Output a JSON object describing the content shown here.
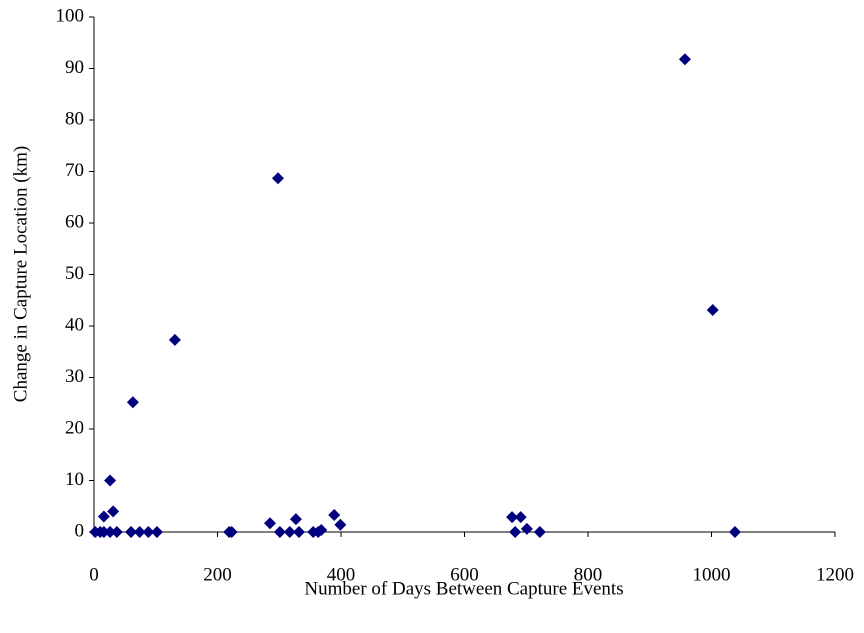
{
  "chart_data": {
    "type": "scatter",
    "x_label": "Number of Days Between Capture Events",
    "y_label": "Change in Capture Location (km)",
    "color": "#00007f",
    "x": [
      2,
      10,
      16,
      16,
      26,
      26,
      31,
      37,
      60,
      63,
      74,
      88,
      102,
      131,
      219,
      223,
      285,
      298,
      301,
      317,
      327,
      332,
      355,
      363,
      368,
      389,
      399,
      677,
      682,
      691,
      701,
      722,
      957,
      1002,
      1038
    ],
    "values": [
      0,
      0,
      0,
      3,
      0,
      10,
      4,
      0,
      0,
      25.2,
      0,
      0,
      0,
      37.3,
      0,
      0,
      1.7,
      68.7,
      0,
      0,
      2.5,
      0,
      0,
      0,
      0.4,
      3.3,
      1.4,
      2.9,
      0,
      2.9,
      0.6,
      0,
      91.8,
      43.1,
      0
    ],
    "xlim": [
      0,
      1200
    ],
    "xticks": [
      0,
      200,
      400,
      600,
      800,
      1000,
      1200
    ],
    "ylim": [
      0,
      100
    ],
    "yticks": [
      0,
      10,
      20,
      30,
      40,
      50,
      60,
      70,
      80,
      90,
      100
    ],
    "grid": false
  }
}
